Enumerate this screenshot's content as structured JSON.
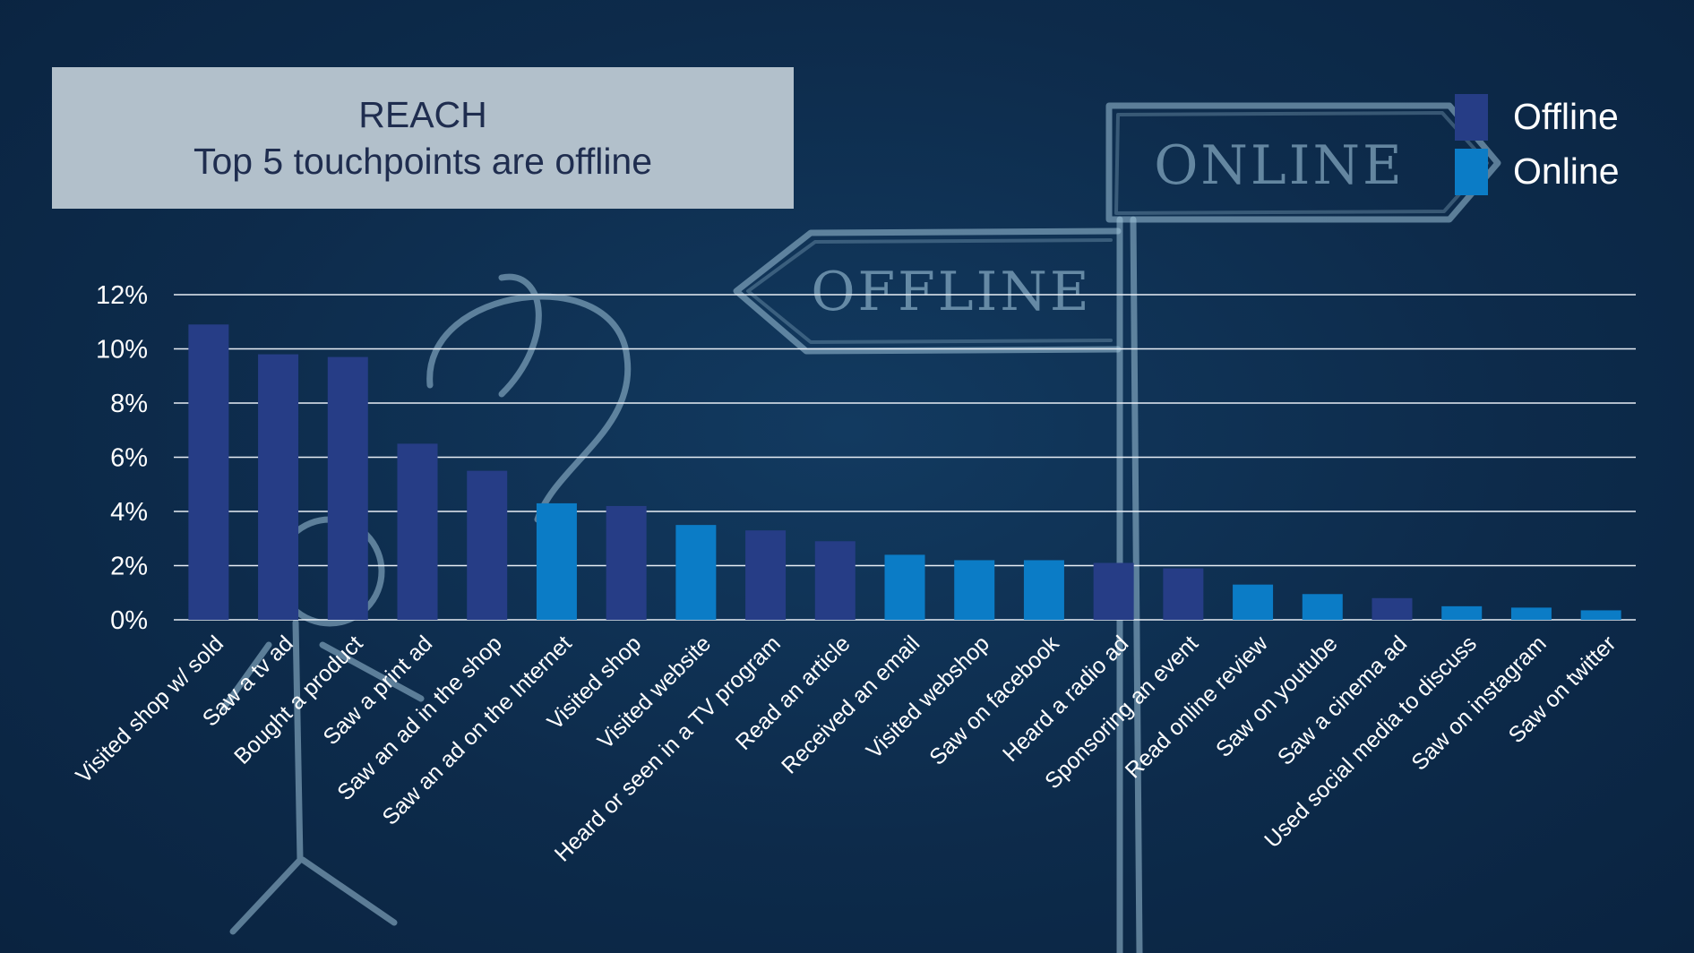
{
  "title_box": {
    "line1": "REACH",
    "line2": "Top 5 touchpoints are offline"
  },
  "signs": {
    "online": "ONLINE",
    "offline": "OFFLINE"
  },
  "colors": {
    "offline": "#263d86",
    "online": "#0b7cc6",
    "gridline": "#e8eef5",
    "text": "#ffffff"
  },
  "legend": [
    {
      "label": "Offline",
      "color": "#263d86"
    },
    {
      "label": "Online",
      "color": "#0b7cc6"
    }
  ],
  "chart_data": {
    "type": "bar",
    "title": "",
    "xlabel": "",
    "ylabel": "",
    "ylim": [
      0,
      12
    ],
    "yticks": [
      "0%",
      "2%",
      "4%",
      "6%",
      "8%",
      "10%",
      "12%"
    ],
    "grid": true,
    "legend_position": "top-right",
    "categories": [
      "Visited shop w/ sold",
      "Saw a tv ad",
      "Bought a product",
      "Saw a print ad",
      "Saw an ad in the shop",
      "Saw an ad on the Internet",
      "Visited shop",
      "Visited website",
      "Heard or seen in a TV program",
      "Read an article",
      "Received an email",
      "Visited webshop",
      "Saw on facebook",
      "Heard a radio ad",
      "Sponsoring an event",
      "Read online review",
      "Saw on youtube",
      "Saw a cinema ad",
      "Used social media to discuss",
      "Saw on instagram",
      "Saw on twitter"
    ],
    "values": [
      10.9,
      9.8,
      9.7,
      6.5,
      5.5,
      4.3,
      4.2,
      3.5,
      3.3,
      2.9,
      2.4,
      2.2,
      2.2,
      2.1,
      1.9,
      1.3,
      0.95,
      0.8,
      0.5,
      0.45,
      0.35
    ],
    "groups": [
      "Offline",
      "Offline",
      "Offline",
      "Offline",
      "Offline",
      "Online",
      "Offline",
      "Online",
      "Offline",
      "Offline",
      "Online",
      "Online",
      "Online",
      "Offline",
      "Offline",
      "Online",
      "Online",
      "Offline",
      "Online",
      "Online",
      "Online"
    ]
  }
}
